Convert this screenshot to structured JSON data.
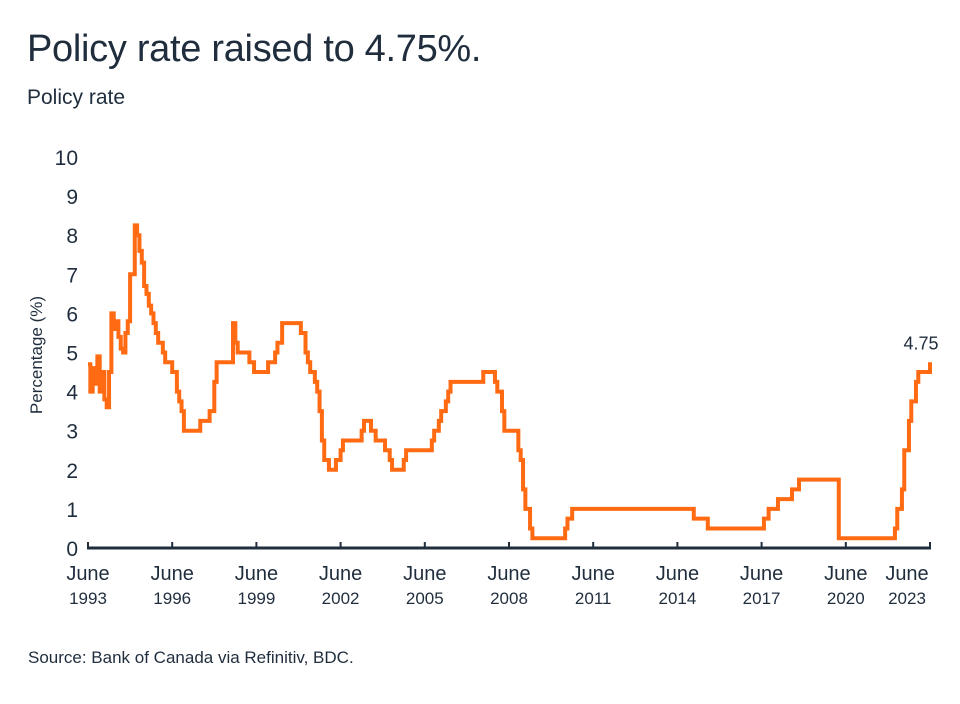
{
  "title": "Policy rate raised to 4.75%.",
  "subtitle": "Policy rate",
  "source": "Source: Bank of Canada via Refinitiv, BDC.",
  "colors": {
    "line": "#ff6a13",
    "text": "#1f2d3d",
    "axis": "#1f2d3d"
  },
  "chart_data": {
    "type": "line",
    "step": true,
    "title": "Policy rate raised to 4.75%.",
    "ylabel": "Percentage (%)",
    "xlabel": "",
    "ylim": [
      0,
      10
    ],
    "yticks": [
      "0",
      "1",
      "2",
      "3",
      "4",
      "5",
      "6",
      "7",
      "8",
      "9",
      "10"
    ],
    "xlim": [
      "1993-06",
      "2023-06"
    ],
    "xticks": [
      {
        "date": "1993-06",
        "line1": "June",
        "line2": "1993"
      },
      {
        "date": "1996-06",
        "line1": "June",
        "line2": "1996"
      },
      {
        "date": "1999-06",
        "line1": "June",
        "line2": "1999"
      },
      {
        "date": "2002-06",
        "line1": "June",
        "line2": "2002"
      },
      {
        "date": "2005-06",
        "line1": "June",
        "line2": "2005"
      },
      {
        "date": "2008-06",
        "line1": "June",
        "line2": "2008"
      },
      {
        "date": "2011-06",
        "line1": "June",
        "line2": "2011"
      },
      {
        "date": "2014-06",
        "line1": "June",
        "line2": "2014"
      },
      {
        "date": "2017-06",
        "line1": "June",
        "line2": "2017"
      },
      {
        "date": "2020-06",
        "line1": "June",
        "line2": "2020"
      },
      {
        "date": "2023-06",
        "line1": "June",
        "line2": "2023"
      }
    ],
    "grid": false,
    "annotation": {
      "text": "4.75",
      "date": "2023-06",
      "value": 4.75
    },
    "series": [
      {
        "values": [
          [
            "1993-06",
            4.7
          ],
          [
            "1993-07",
            4.0
          ],
          [
            "1993-08",
            4.6
          ],
          [
            "1993-09",
            4.2
          ],
          [
            "1993-10",
            4.9
          ],
          [
            "1993-11",
            4.0
          ],
          [
            "1993-12",
            4.5
          ],
          [
            "1994-01",
            3.8
          ],
          [
            "1994-02",
            3.6
          ],
          [
            "1994-03",
            4.5
          ],
          [
            "1994-04",
            6.0
          ],
          [
            "1994-05",
            5.6
          ],
          [
            "1994-06",
            5.8
          ],
          [
            "1994-07",
            5.4
          ],
          [
            "1994-08",
            5.1
          ],
          [
            "1994-09",
            5.0
          ],
          [
            "1994-10",
            5.5
          ],
          [
            "1994-11",
            5.8
          ],
          [
            "1994-12",
            7.0
          ],
          [
            "1995-02",
            8.25
          ],
          [
            "1995-03",
            8.0
          ],
          [
            "1995-04",
            7.6
          ],
          [
            "1995-05",
            7.3
          ],
          [
            "1995-06",
            6.7
          ],
          [
            "1995-07",
            6.5
          ],
          [
            "1995-08",
            6.2
          ],
          [
            "1995-09",
            6.0
          ],
          [
            "1995-10",
            5.75
          ],
          [
            "1995-11",
            5.5
          ],
          [
            "1995-12",
            5.25
          ],
          [
            "1996-02",
            5.0
          ],
          [
            "1996-03",
            4.75
          ],
          [
            "1996-06",
            4.5
          ],
          [
            "1996-08",
            4.0
          ],
          [
            "1996-09",
            3.75
          ],
          [
            "1996-10",
            3.5
          ],
          [
            "1996-11",
            3.0
          ],
          [
            "1997-06",
            3.25
          ],
          [
            "1997-10",
            3.5
          ],
          [
            "1997-12",
            4.25
          ],
          [
            "1998-01",
            4.75
          ],
          [
            "1998-08",
            5.75
          ],
          [
            "1998-09",
            5.25
          ],
          [
            "1998-10",
            5.0
          ],
          [
            "1998-11",
            5.0
          ],
          [
            "1999-03",
            4.75
          ],
          [
            "1999-05",
            4.5
          ],
          [
            "1999-11",
            4.75
          ],
          [
            "2000-02",
            5.0
          ],
          [
            "2000-03",
            5.25
          ],
          [
            "2000-05",
            5.75
          ],
          [
            "2001-01",
            5.5
          ],
          [
            "2001-03",
            5.0
          ],
          [
            "2001-04",
            4.75
          ],
          [
            "2001-05",
            4.5
          ],
          [
            "2001-07",
            4.25
          ],
          [
            "2001-08",
            4.0
          ],
          [
            "2001-09",
            3.5
          ],
          [
            "2001-10",
            2.75
          ],
          [
            "2001-11",
            2.25
          ],
          [
            "2002-01",
            2.0
          ],
          [
            "2002-04",
            2.25
          ],
          [
            "2002-06",
            2.5
          ],
          [
            "2002-07",
            2.75
          ],
          [
            "2003-03",
            3.0
          ],
          [
            "2003-04",
            3.25
          ],
          [
            "2003-07",
            3.0
          ],
          [
            "2003-09",
            2.75
          ],
          [
            "2004-01",
            2.5
          ],
          [
            "2004-03",
            2.25
          ],
          [
            "2004-04",
            2.0
          ],
          [
            "2004-09",
            2.25
          ],
          [
            "2004-10",
            2.5
          ],
          [
            "2005-09",
            2.75
          ],
          [
            "2005-10",
            3.0
          ],
          [
            "2005-12",
            3.25
          ],
          [
            "2006-01",
            3.5
          ],
          [
            "2006-03",
            3.75
          ],
          [
            "2006-04",
            4.0
          ],
          [
            "2006-05",
            4.25
          ],
          [
            "2007-07",
            4.5
          ],
          [
            "2007-12",
            4.25
          ],
          [
            "2008-01",
            4.0
          ],
          [
            "2008-03",
            3.5
          ],
          [
            "2008-04",
            3.0
          ],
          [
            "2008-10",
            2.5
          ],
          [
            "2008-11",
            2.25
          ],
          [
            "2008-12",
            1.5
          ],
          [
            "2009-01",
            1.0
          ],
          [
            "2009-03",
            0.5
          ],
          [
            "2009-04",
            0.25
          ],
          [
            "2010-06",
            0.5
          ],
          [
            "2010-07",
            0.75
          ],
          [
            "2010-09",
            1.0
          ],
          [
            "2015-01",
            0.75
          ],
          [
            "2015-07",
            0.5
          ],
          [
            "2017-07",
            0.75
          ],
          [
            "2017-09",
            1.0
          ],
          [
            "2018-01",
            1.25
          ],
          [
            "2018-07",
            1.5
          ],
          [
            "2018-10",
            1.75
          ],
          [
            "2020-03",
            1.25
          ],
          [
            "2020-03",
            0.25
          ],
          [
            "2022-03",
            0.5
          ],
          [
            "2022-04",
            1.0
          ],
          [
            "2022-06",
            1.5
          ],
          [
            "2022-07",
            2.5
          ],
          [
            "2022-09",
            3.25
          ],
          [
            "2022-10",
            3.75
          ],
          [
            "2022-12",
            4.25
          ],
          [
            "2023-01",
            4.5
          ],
          [
            "2023-06",
            4.75
          ]
        ]
      }
    ]
  }
}
